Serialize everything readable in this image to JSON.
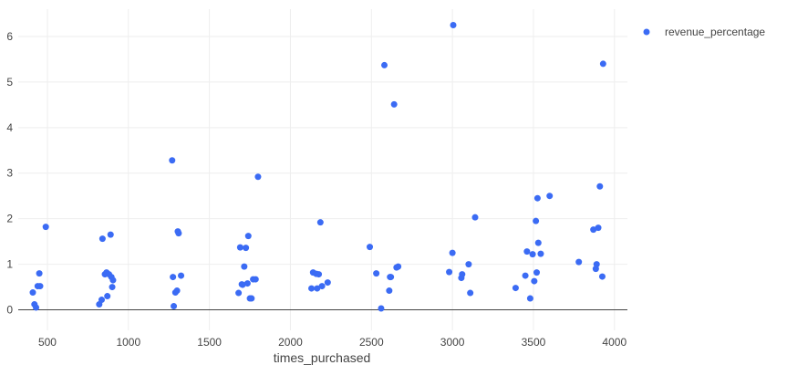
{
  "chart_data": {
    "type": "scatter",
    "xlabel": "times_purchased",
    "ylabel": "",
    "xlim": [
      320,
      4080
    ],
    "ylim": [
      -0.45,
      6.6
    ],
    "xticks": [
      500,
      1000,
      1500,
      2000,
      2500,
      3000,
      3500,
      4000
    ],
    "yticks": [
      0,
      1,
      2,
      3,
      4,
      5,
      6
    ],
    "grid": true,
    "zero_line": true,
    "legend": {
      "position": "top-right"
    },
    "colors": {
      "marker": "#3b6bf4",
      "grid": "#eeeeee",
      "zeroline": "#444444",
      "text": "#444444"
    },
    "series": [
      {
        "name": "revenue_percentage",
        "x": [
          410,
          420,
          430,
          440,
          450,
          455,
          490,
          820,
          835,
          840,
          855,
          865,
          870,
          880,
          890,
          895,
          900,
          905,
          1270,
          1275,
          1280,
          1290,
          1300,
          1305,
          1310,
          1325,
          1680,
          1690,
          1700,
          1705,
          1715,
          1725,
          1735,
          1740,
          1750,
          1760,
          1770,
          1785,
          1800,
          2130,
          2140,
          2160,
          2165,
          2175,
          2185,
          2195,
          2230,
          2490,
          2530,
          2560,
          2580,
          2610,
          2615,
          2620,
          2640,
          2655,
          2665,
          2980,
          3000,
          3005,
          3055,
          3060,
          3100,
          3110,
          3140,
          3390,
          3450,
          3460,
          3480,
          3495,
          3505,
          3515,
          3520,
          3525,
          3530,
          3545,
          3600,
          3780,
          3870,
          3885,
          3890,
          3900,
          3910,
          3925,
          3930
        ],
        "y": [
          0.38,
          0.12,
          0.05,
          0.52,
          0.8,
          0.52,
          1.82,
          0.12,
          0.22,
          1.56,
          0.78,
          0.82,
          0.3,
          0.78,
          1.65,
          0.72,
          0.5,
          0.65,
          3.28,
          0.72,
          0.08,
          0.38,
          0.42,
          1.72,
          1.68,
          0.75,
          0.37,
          1.37,
          0.56,
          0.55,
          0.95,
          1.36,
          0.58,
          1.62,
          0.25,
          0.25,
          0.67,
          0.67,
          2.92,
          0.47,
          0.82,
          0.79,
          0.47,
          0.78,
          1.92,
          0.52,
          0.6,
          1.38,
          0.8,
          0.03,
          5.37,
          0.42,
          0.72,
          0.72,
          4.51,
          0.93,
          0.95,
          0.83,
          1.25,
          6.25,
          0.7,
          0.78,
          1.0,
          0.37,
          2.03,
          0.48,
          0.75,
          1.28,
          0.25,
          1.22,
          0.63,
          1.95,
          0.82,
          2.45,
          1.47,
          1.23,
          2.5,
          1.05,
          1.76,
          0.9,
          1.0,
          1.8,
          2.71,
          0.73,
          5.4
        ]
      }
    ]
  }
}
